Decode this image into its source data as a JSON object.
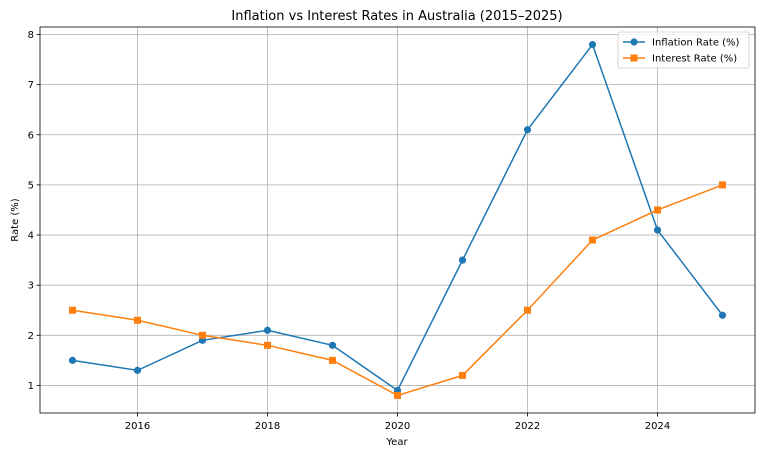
{
  "chart_data": {
    "type": "line",
    "title": "Inflation vs Interest Rates in Australia (2015–2025)",
    "xlabel": "Year",
    "ylabel": "Rate (%)",
    "x": [
      2015,
      2016,
      2017,
      2018,
      2019,
      2020,
      2021,
      2022,
      2023,
      2024,
      2025
    ],
    "series": [
      {
        "name": "Inflation Rate (%)",
        "color": "#1f77b4",
        "marker": "circle",
        "values": [
          1.5,
          1.3,
          1.9,
          2.1,
          1.8,
          0.9,
          3.5,
          6.1,
          7.8,
          4.1,
          2.4
        ]
      },
      {
        "name": "Interest Rate (%)",
        "color": "#ff7f0e",
        "marker": "square",
        "values": [
          2.5,
          2.3,
          2.0,
          1.8,
          1.5,
          0.8,
          1.2,
          2.5,
          3.9,
          4.5,
          5.0
        ]
      }
    ],
    "xticks": [
      2016,
      2018,
      2020,
      2022,
      2024
    ],
    "yticks": [
      1,
      2,
      3,
      4,
      5,
      6,
      7,
      8
    ],
    "xlim": [
      2014.5,
      2025.5
    ],
    "ylim": [
      0.45,
      8.15
    ],
    "grid": true,
    "legend_position": "upper right"
  }
}
